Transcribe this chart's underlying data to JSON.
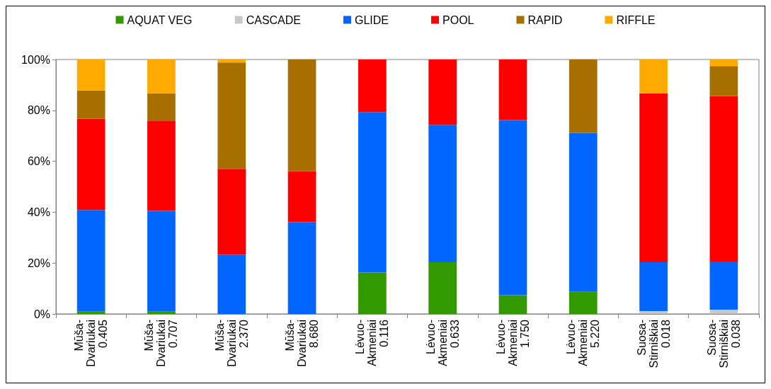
{
  "chart_data": {
    "type": "bar",
    "stacked": true,
    "categories": [
      "Mūša-\nDvariukai\n0.405",
      "Mūša-\nDvariukai\n0.707",
      "Mūša-\nDvariukai\n2.370",
      "Mūša-\nDvariukai\n8.680",
      "Lėvuo-\nAkmeniai\n0.116",
      "Lėvuo-\nAkmeniai\n0.633",
      "Lėvuo-\nAkmeniai\n1.750",
      "Lėvuo-\nAkmeniai\n5.220",
      "Suosa-\nStirniškiai\n0.018",
      "Suosa-\nStirniškiai\n0.038"
    ],
    "series": [
      {
        "name": "AQUAT VEG",
        "color": "#339900",
        "values": [
          0.9,
          0.9,
          0,
          0,
          16.3,
          20.3,
          7.4,
          8.7,
          0,
          0
        ]
      },
      {
        "name": "CASCADE",
        "color": "#c8c8c8",
        "values": [
          0,
          0,
          0,
          0,
          0,
          0,
          0,
          0,
          1.1,
          1.7
        ]
      },
      {
        "name": "GLIDE",
        "color": "#0066ff",
        "values": [
          40.0,
          39.6,
          23.3,
          36.1,
          63.0,
          54.0,
          68.8,
          62.5,
          19.2,
          18.9
        ]
      },
      {
        "name": "POOL",
        "color": "#ff0000",
        "values": [
          35.8,
          35.5,
          33.7,
          20.0,
          20.7,
          25.7,
          23.8,
          0,
          66.4,
          65.0
        ]
      },
      {
        "name": "RAPID",
        "color": "#a66f00",
        "values": [
          11.1,
          10.7,
          41.8,
          43.9,
          0,
          0,
          0,
          28.8,
          0,
          11.8
        ]
      },
      {
        "name": "RIFFLE",
        "color": "#ffaa00",
        "values": [
          12.2,
          13.3,
          1.2,
          0,
          0,
          0,
          0,
          0,
          13.3,
          2.6
        ]
      }
    ],
    "ylim": [
      0,
      100
    ],
    "yticks": [
      {
        "value": 0,
        "label": "0%"
      },
      {
        "value": 20,
        "label": "20%"
      },
      {
        "value": 40,
        "label": "40%"
      },
      {
        "value": 60,
        "label": "60%"
      },
      {
        "value": 80,
        "label": "80%"
      },
      {
        "value": 100,
        "label": "100%"
      }
    ],
    "legend": "top",
    "grid": false
  }
}
